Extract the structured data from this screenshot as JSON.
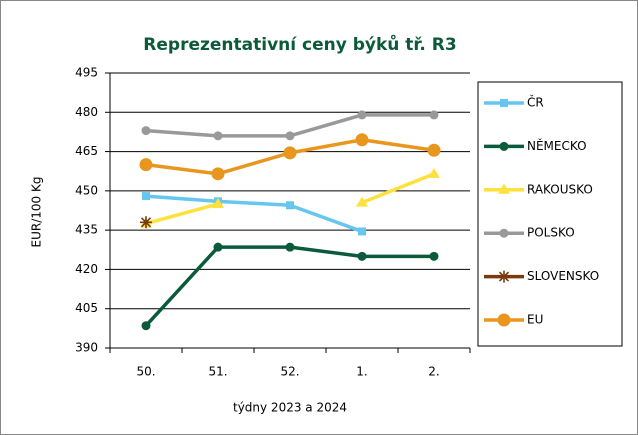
{
  "chart_data": {
    "type": "line",
    "title": "Reprezentativní ceny býků tř. R3",
    "y_label": "EUR/100  Kg",
    "x_label": "týdny 2023  a 2024",
    "categories": [
      "50.",
      "51.",
      "52.",
      "1.",
      "2."
    ],
    "series": [
      {
        "name": "ČR",
        "color": "#66c6f0",
        "marker": "square",
        "values": [
          448,
          446,
          444.5,
          434.5,
          null
        ]
      },
      {
        "name": "NĚMECKO",
        "color": "#0b5a3a",
        "marker": "circle",
        "values": [
          398.5,
          428.5,
          428.5,
          425,
          425
        ]
      },
      {
        "name": "RAKOUSKO",
        "color": "#ffe13d",
        "marker": "triangle",
        "values": [
          437.5,
          445,
          null,
          445.5,
          456.5
        ]
      },
      {
        "name": "POLSKO",
        "color": "#999999",
        "marker": "circle",
        "values": [
          473,
          471,
          471,
          479,
          479
        ]
      },
      {
        "name": "SLOVENSKO",
        "color": "#7a3a10",
        "marker": "star",
        "values": [
          438,
          null,
          null,
          null,
          null
        ]
      },
      {
        "name": "EU",
        "color": "#e8961e",
        "marker": "big-circle",
        "values": [
          460,
          456.5,
          464.5,
          469.5,
          465.5
        ]
      }
    ],
    "ylim": [
      390,
      495
    ],
    "yticks": [
      390,
      405,
      420,
      435,
      450,
      465,
      480,
      495
    ],
    "grid": true,
    "legend": "right"
  }
}
